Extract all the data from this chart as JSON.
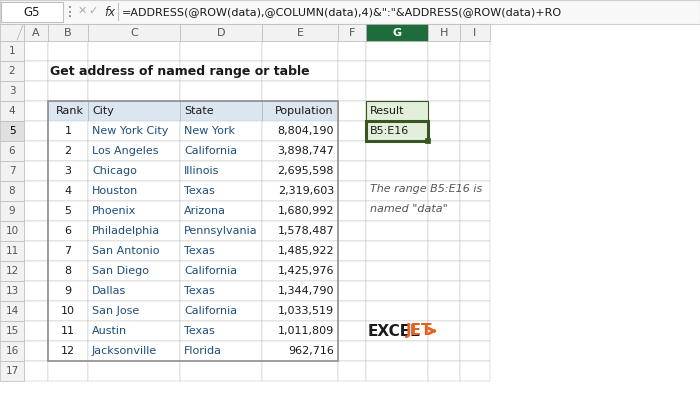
{
  "title": "Get address of named range or table",
  "formula_bar_cell": "G5",
  "formula_bar_text": "=ADDRESS(@ROW(data),@COLUMN(data),4)&\":\"&ADDRESS(@ROW(data)+RO",
  "col_headers": [
    "A",
    "B",
    "C",
    "D",
    "E",
    "F",
    "G",
    "H",
    "I"
  ],
  "row_headers": [
    "1",
    "2",
    "3",
    "4",
    "5",
    "6",
    "7",
    "8",
    "9",
    "10",
    "11",
    "12",
    "13",
    "14",
    "15",
    "16",
    "17"
  ],
  "table_headers": [
    "Rank",
    "City",
    "State",
    "Population"
  ],
  "table_data": [
    [
      1,
      "New York City",
      "New York",
      "8,804,190"
    ],
    [
      2,
      "Los Angeles",
      "California",
      "3,898,747"
    ],
    [
      3,
      "Chicago",
      "Illinois",
      "2,695,598"
    ],
    [
      4,
      "Houston",
      "Texas",
      "2,319,603"
    ],
    [
      5,
      "Phoenix",
      "Arizona",
      "1,680,992"
    ],
    [
      6,
      "Philadelphia",
      "Pennsylvania",
      "1,578,487"
    ],
    [
      7,
      "San Antonio",
      "Texas",
      "1,485,922"
    ],
    [
      8,
      "San Diego",
      "California",
      "1,425,976"
    ],
    [
      9,
      "Dallas",
      "Texas",
      "1,344,790"
    ],
    [
      10,
      "San Jose",
      "California",
      "1,033,519"
    ],
    [
      11,
      "Austin",
      "Texas",
      "1,011,809"
    ],
    [
      12,
      "Jacksonville",
      "Florida",
      "962,716"
    ]
  ],
  "result_header": "Result",
  "result_value": "B5:E16",
  "annotation_line1": "The range B5:E16 is",
  "annotation_line2": "named \"data\"",
  "header_bg": "#dce6f1",
  "grid_line_color": "#b8b8b8",
  "formula_bar_bg": "#ffffff",
  "formula_bar_border": "#c0c0c0",
  "col_header_bg": "#f2f2f2",
  "row_header_bg": "#f2f2f2",
  "active_col_header_bg": "#1e6b3c",
  "active_col_header_fg": "#ffffff",
  "active_row_header_bg": "#e0e0e0",
  "city_color": "#1f4e79",
  "state_color": "#1f4e79",
  "result_cell_bg": "#e2efda",
  "result_cell_border": "#375623",
  "annotation_color": "#555555",
  "outer_bg": "#f0f0f0",
  "cell_bg": "#ffffff",
  "exceljet_dark": "#1a1a1a",
  "exceljet_orange": "#e8601c"
}
